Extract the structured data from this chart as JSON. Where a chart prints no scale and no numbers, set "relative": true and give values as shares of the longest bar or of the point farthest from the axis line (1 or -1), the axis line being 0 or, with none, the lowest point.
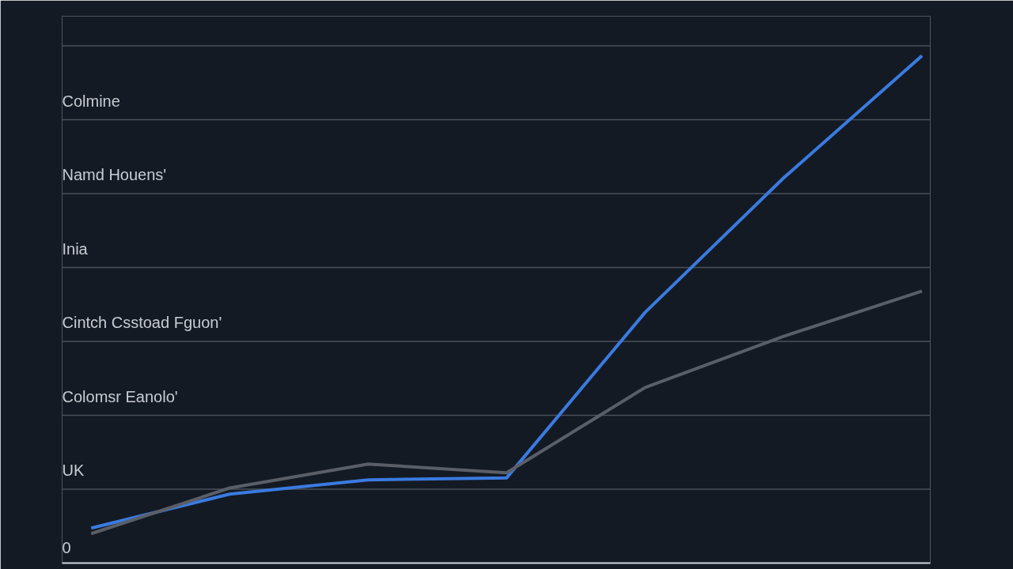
{
  "chart_data": {
    "type": "line",
    "relative": true,
    "categories": [
      null,
      null,
      null,
      null,
      null,
      null,
      null
    ],
    "series": [
      {
        "color": "#3a7be0",
        "values": [
          0.069,
          0.136,
          0.164,
          0.168,
          0.494,
          0.759,
          1
        ]
      },
      {
        "color": "#5a5e66",
        "values": [
          0.058,
          0.148,
          0.195,
          0.178,
          0.346,
          0.447,
          0.536
        ]
      }
    ],
    "annotations": [
      "Colmine",
      "Namd Houens'",
      "Inia",
      "Cintch Csstoad Fguon'",
      "Colomsr Eanolo'",
      "UK",
      "0"
    ],
    "grid": "y",
    "marker": "none",
    "line_style": "solid"
  }
}
